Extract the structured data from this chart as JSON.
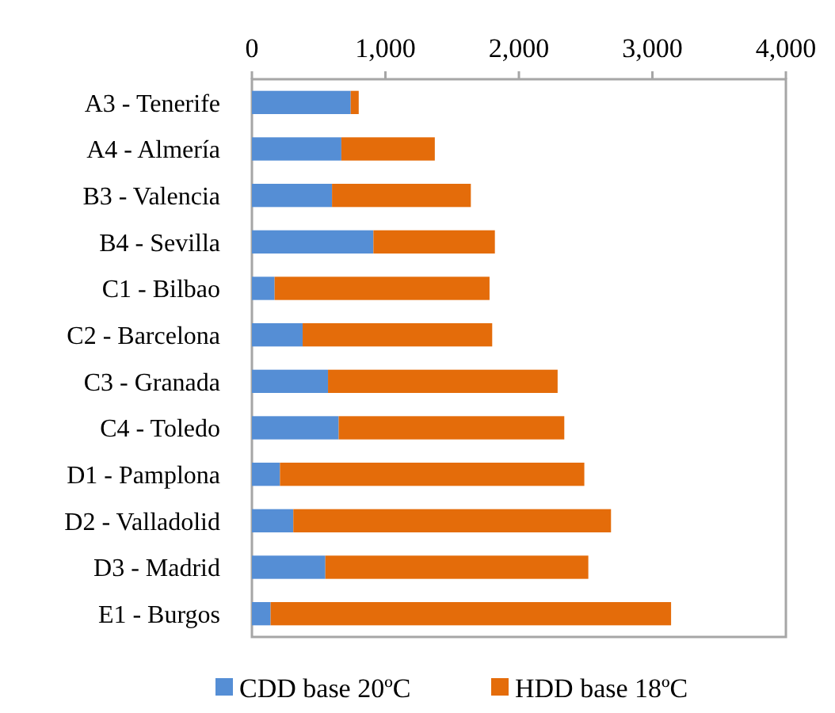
{
  "chart_data": {
    "type": "bar",
    "orientation": "horizontal",
    "stacked": true,
    "categories": [
      "A3 - Tenerife",
      "A4 - Almería",
      "B3 - Valencia",
      "B4 - Sevilla",
      "C1 - Bilbao",
      "C2 - Barcelona",
      "C3 - Granada",
      "C4 - Toledo",
      "D1 - Pamplona",
      "D2 - Valladolid",
      "D3 - Madrid",
      "E1 - Burgos"
    ],
    "series": [
      {
        "name": "CDD base 20ºC",
        "color": "#558ed5",
        "values": [
          740,
          670,
          600,
          910,
          170,
          380,
          570,
          650,
          210,
          310,
          550,
          140
        ]
      },
      {
        "name": "HDD base 18ºC",
        "color": "#e46c0a",
        "values": [
          60,
          700,
          1040,
          910,
          1610,
          1420,
          1720,
          1690,
          2280,
          2380,
          1970,
          3000
        ]
      }
    ],
    "xlim": [
      0,
      4000
    ],
    "xticks": [
      {
        "value": 0,
        "label": "0"
      },
      {
        "value": 1000,
        "label": "1,000"
      },
      {
        "value": 2000,
        "label": "2,000"
      },
      {
        "value": 3000,
        "label": "3,000"
      },
      {
        "value": 4000,
        "label": "4,000"
      }
    ],
    "grid": false,
    "legend": "bottom"
  }
}
